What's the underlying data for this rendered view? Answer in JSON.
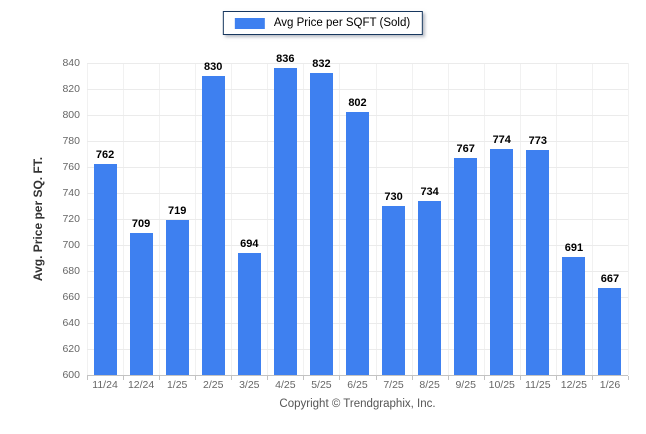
{
  "legend": {
    "label": "Avg Price per SQFT (Sold)"
  },
  "axes": {
    "y_title": "Avg. Price per SQ. FT."
  },
  "footer": {
    "text": "Copyright © Trendgraphix, Inc."
  },
  "colors": {
    "bar": "#3e80f0",
    "hgrid": "#ebebeb",
    "vgrid": "#f1f1f1",
    "axis_line": "#c3c3c3",
    "tick_label": "#666666",
    "value_label": "#000000",
    "legend_border": "#17375e"
  },
  "chart_data": {
    "type": "bar",
    "title": "Avg Price per SQFT (Sold)",
    "categories": [
      "11/24",
      "12/24",
      "1/25",
      "2/25",
      "3/25",
      "4/25",
      "5/25",
      "6/25",
      "7/25",
      "8/25",
      "9/25",
      "10/25",
      "11/25",
      "12/25",
      "1/26"
    ],
    "values": [
      762,
      709,
      719,
      830,
      694,
      836,
      832,
      802,
      730,
      734,
      767,
      774,
      773,
      691,
      667
    ],
    "xlabel": "",
    "ylabel": "Avg. Price per SQ. FT.",
    "ylim": [
      600,
      840
    ],
    "yticks": [
      600,
      620,
      640,
      660,
      680,
      700,
      720,
      740,
      760,
      780,
      800,
      820,
      840
    ],
    "grid": true,
    "legend_position": "top"
  }
}
